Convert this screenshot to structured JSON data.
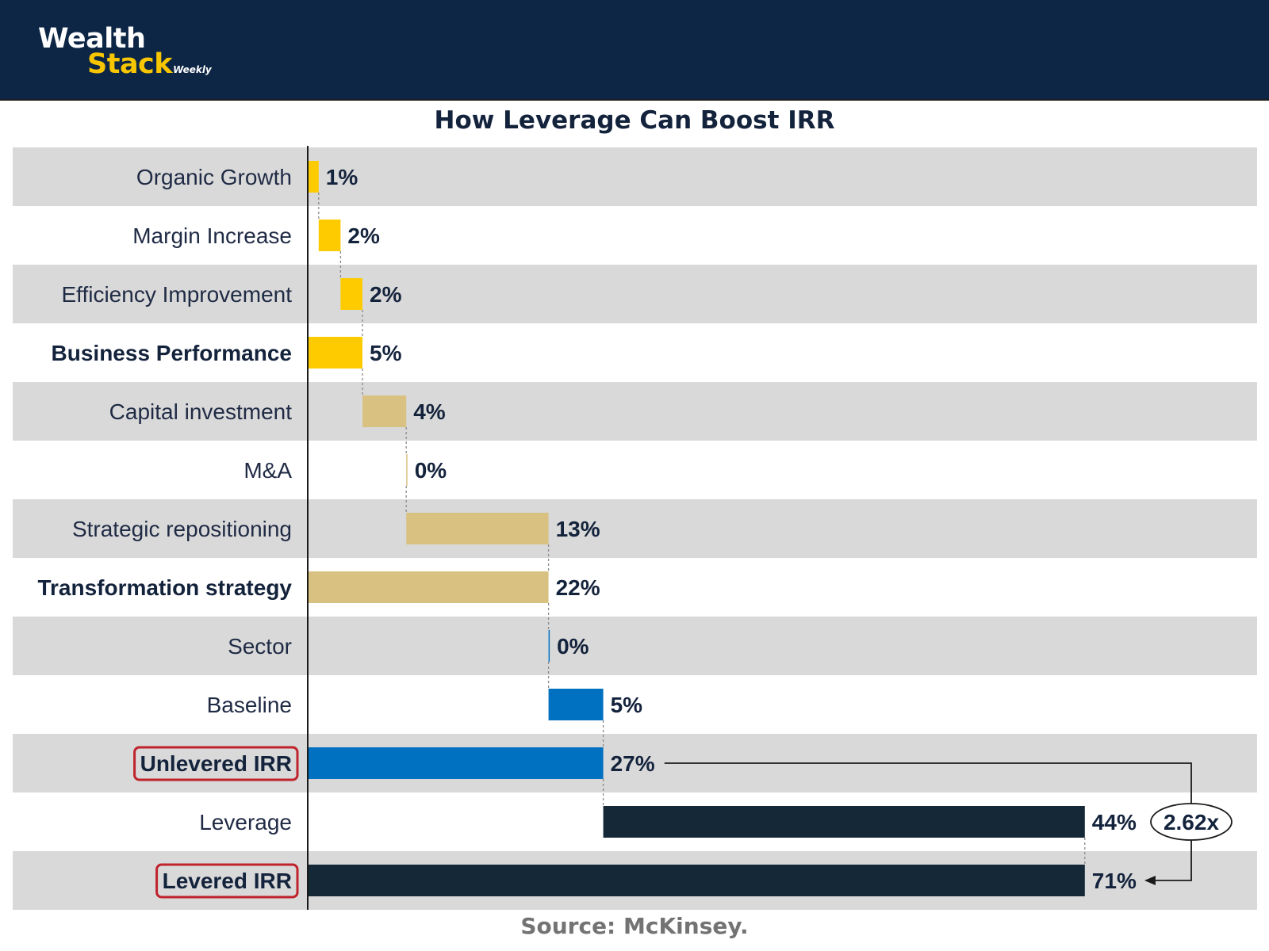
{
  "brand": {
    "line1": "Wealth",
    "line2": "Stack",
    "line3": "Weekly"
  },
  "source": "Source: McKinsey.",
  "chart_data": {
    "type": "bar",
    "subtype": "waterfall-horizontal",
    "title": "How Leverage Can Boost IRR",
    "xlim": [
      0,
      71
    ],
    "colors": {
      "business": "#fdcb00",
      "transformation": "#d9c181",
      "baseline": "#0070c1",
      "leverage": "#142837",
      "row_band": "#d9d9d9",
      "highlight": "#c0232c"
    },
    "rows": [
      {
        "label": "Organic Growth",
        "value": 1,
        "start": 0,
        "color": "business",
        "bold": false,
        "highlight": false,
        "value_label": "1%"
      },
      {
        "label": "Margin Increase",
        "value": 2,
        "start": 1,
        "color": "business",
        "bold": false,
        "highlight": false,
        "value_label": "2%"
      },
      {
        "label": "Efficiency Improvement",
        "value": 2,
        "start": 3,
        "color": "business",
        "bold": false,
        "highlight": false,
        "value_label": "2%"
      },
      {
        "label": "Business Performance",
        "value": 5,
        "start": 0,
        "color": "business",
        "bold": true,
        "highlight": false,
        "value_label": "5%"
      },
      {
        "label": "Capital investment",
        "value": 4,
        "start": 5,
        "color": "transformation",
        "bold": false,
        "highlight": false,
        "value_label": "4%"
      },
      {
        "label": "M&A",
        "value": 0,
        "start": 9,
        "color": "transformation",
        "bold": false,
        "highlight": false,
        "value_label": "0%"
      },
      {
        "label": "Strategic repositioning",
        "value": 13,
        "start": 9,
        "color": "transformation",
        "bold": false,
        "highlight": false,
        "value_label": "13%"
      },
      {
        "label": "Transformation strategy",
        "value": 22,
        "start": 0,
        "color": "transformation",
        "bold": true,
        "highlight": false,
        "value_label": "22%"
      },
      {
        "label": "Sector",
        "value": 0,
        "start": 22,
        "color": "baseline",
        "bold": false,
        "highlight": false,
        "value_label": "0%"
      },
      {
        "label": "Baseline",
        "value": 5,
        "start": 22,
        "color": "baseline",
        "bold": false,
        "highlight": false,
        "value_label": "5%"
      },
      {
        "label": "Unlevered IRR",
        "value": 27,
        "start": 0,
        "color": "baseline",
        "bold": true,
        "highlight": true,
        "value_label": "27%"
      },
      {
        "label": "Leverage",
        "value": 44,
        "start": 27,
        "color": "leverage",
        "bold": false,
        "highlight": false,
        "value_label": "44%"
      },
      {
        "label": "Levered IRR",
        "value": 71,
        "start": 0,
        "color": "leverage",
        "bold": true,
        "highlight": true,
        "value_label": "71%"
      }
    ],
    "annotation": {
      "label": "2.62x",
      "from": "Unlevered IRR",
      "to": "Levered IRR"
    }
  }
}
